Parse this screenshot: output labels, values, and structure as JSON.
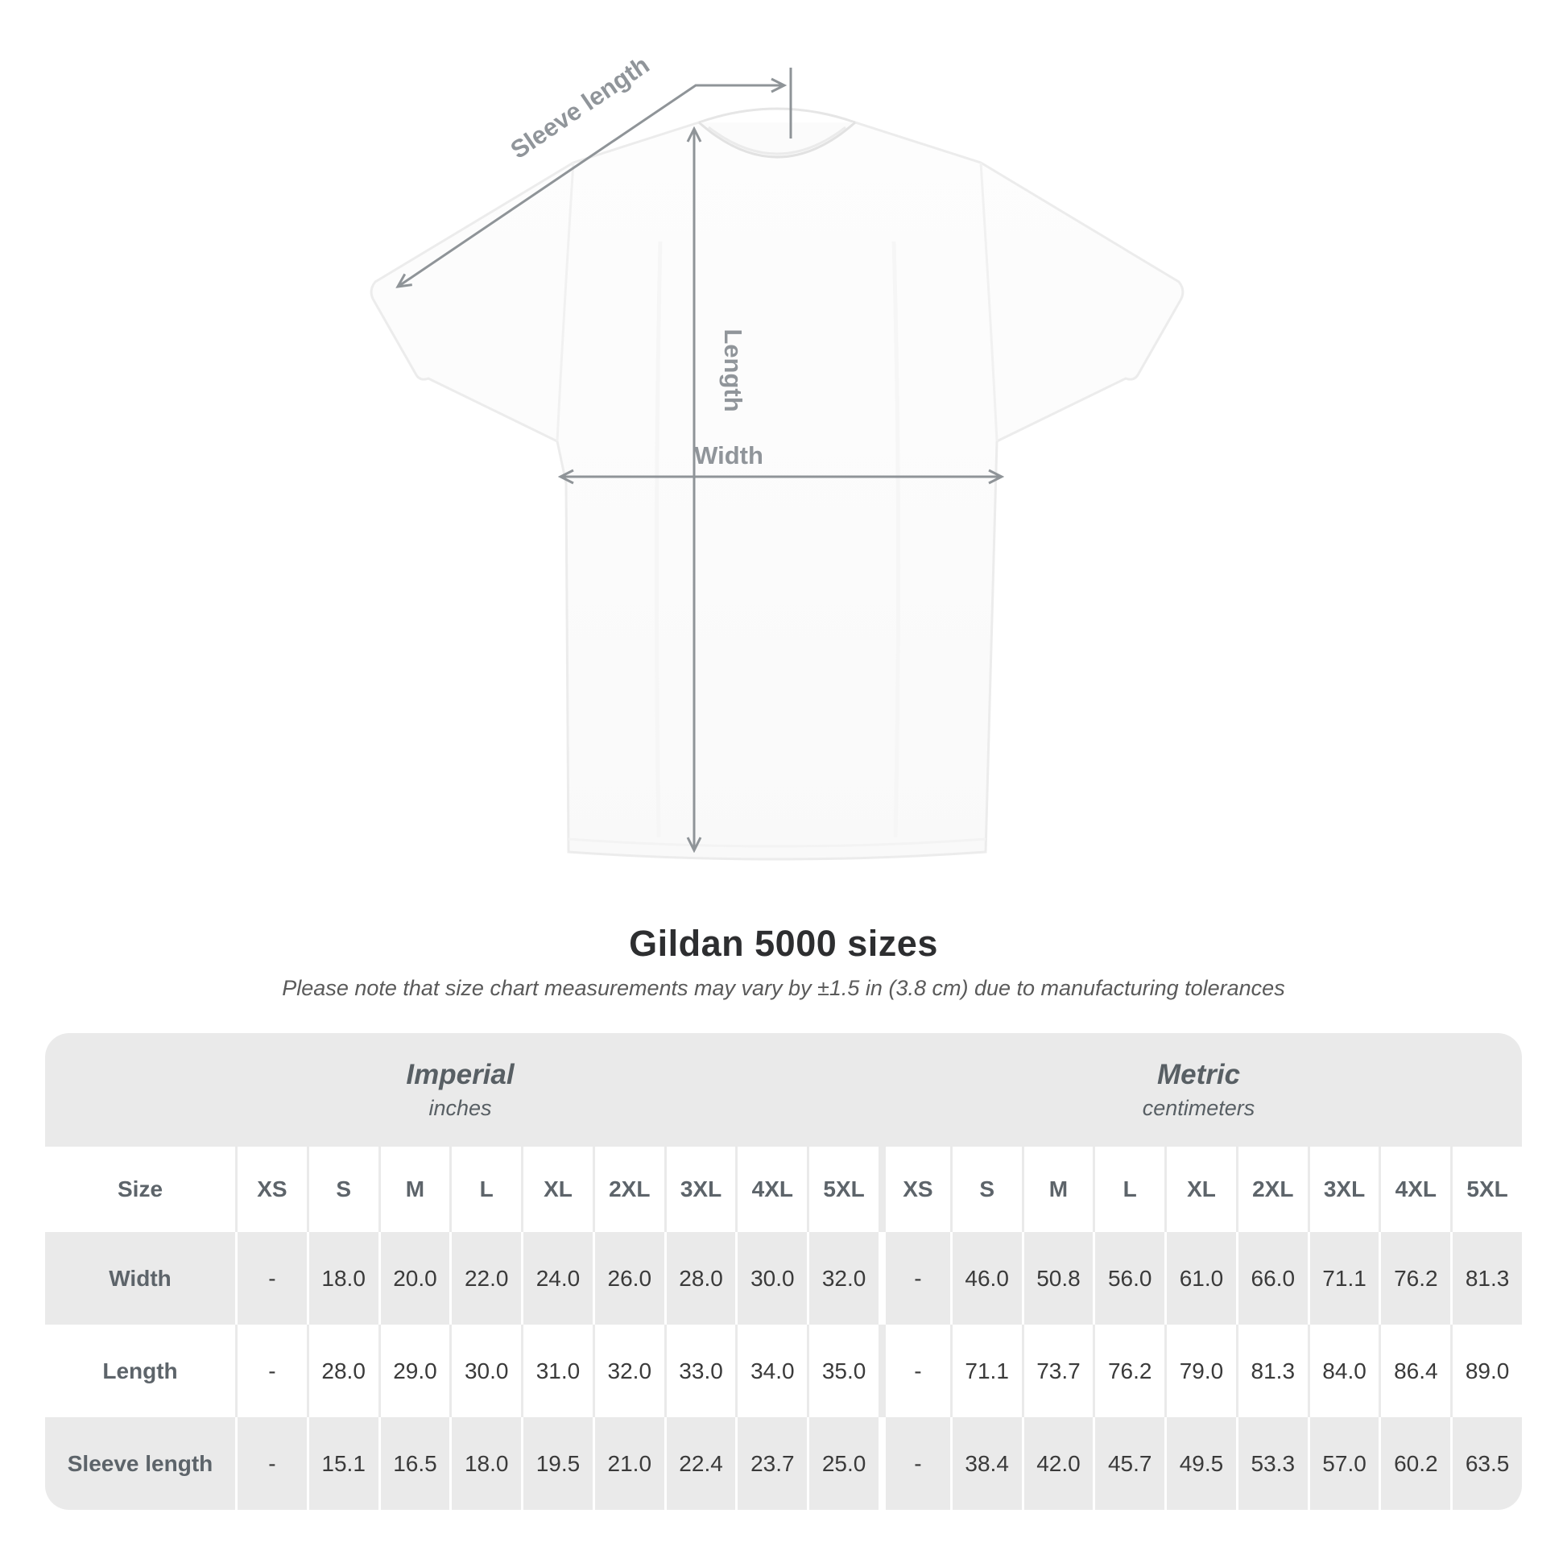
{
  "diagram": {
    "labels": {
      "sleeve_length": "Sleeve length",
      "length": "Length",
      "width": "Width"
    },
    "annotation_color": "#8f9498"
  },
  "title": "Gildan 5000 sizes",
  "subtitle": "Please note that size chart measurements may vary by ±1.5 in (3.8 cm) due to manufacturing tolerances",
  "table": {
    "stripe_color": "#eaeaea",
    "sections": [
      {
        "label": "Imperial",
        "sublabel": "inches"
      },
      {
        "label": "Metric",
        "sublabel": "centimeters"
      }
    ],
    "size_header": "Size",
    "sizes": [
      "XS",
      "S",
      "M",
      "L",
      "XL",
      "2XL",
      "3XL",
      "4XL",
      "5XL"
    ],
    "rows": [
      {
        "label": "Width",
        "imperial": [
          "-",
          "18.0",
          "20.0",
          "22.0",
          "24.0",
          "26.0",
          "28.0",
          "30.0",
          "32.0"
        ],
        "metric": [
          "-",
          "46.0",
          "50.8",
          "56.0",
          "61.0",
          "66.0",
          "71.1",
          "76.2",
          "81.3"
        ]
      },
      {
        "label": "Length",
        "imperial": [
          "-",
          "28.0",
          "29.0",
          "30.0",
          "31.0",
          "32.0",
          "33.0",
          "34.0",
          "35.0"
        ],
        "metric": [
          "-",
          "71.1",
          "73.7",
          "76.2",
          "79.0",
          "81.3",
          "84.0",
          "86.4",
          "89.0"
        ]
      },
      {
        "label": "Sleeve length",
        "imperial": [
          "-",
          "15.1",
          "16.5",
          "18.0",
          "19.5",
          "21.0",
          "22.4",
          "23.7",
          "25.0"
        ],
        "metric": [
          "-",
          "38.4",
          "42.0",
          "45.7",
          "49.5",
          "53.3",
          "57.0",
          "60.2",
          "63.5"
        ]
      }
    ]
  }
}
